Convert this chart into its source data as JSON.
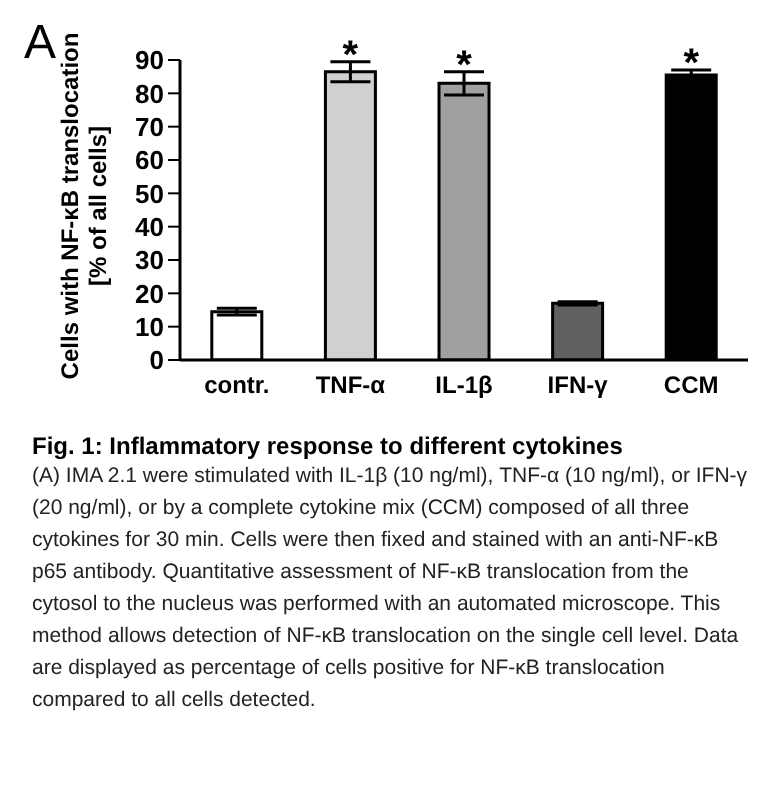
{
  "chart_data": {
    "type": "bar",
    "title": "Fig. 1: Inflammatory response to different cytokines",
    "ylabel": "Cells with NF-κB translocation\n[% of all cells]",
    "categories": [
      "contr.",
      "TNF-α",
      "IL-1β",
      "IFN-γ",
      "CCM"
    ],
    "values": [
      14.5,
      86.5,
      83,
      17,
      85.5
    ],
    "errors": [
      1,
      3,
      3.5,
      0.5,
      1.5
    ],
    "colors": [
      "#ffffff",
      "#d0d0d0",
      "#a0a0a0",
      "#606060",
      "#000000"
    ],
    "ylim": [
      0,
      90
    ],
    "yticks": [
      0,
      10,
      20,
      30,
      40,
      50,
      60,
      70,
      80,
      90
    ],
    "grid": false,
    "legend": false,
    "annotations": [
      {
        "text": "A"
      },
      {
        "text": "*",
        "x": "TNF-α",
        "y": 89.5
      },
      {
        "text": "*",
        "x": "IL-1β",
        "y": 86.5
      },
      {
        "text": "*",
        "x": "CCM",
        "y": 87
      },
      {
        "text": "(A) IMA 2.1 were stimulated with IL-1β (10 ng/ml), TNF-α (10 ng/ml), or IFN-γ (20 ng/ml), or by a complete cytokine mix (CCM) composed of all three cytokines for 30 min. Cells were then fixed and stained with an anti-NF-κB p65 antibody. Quantitative assessment of NF-κB translocation from the cytosol to the nucleus was performed with an automated microscope. This method allows detection of NF-κB translocation on the single cell level. Data are displayed as percentage of cells positive for NF-κB translocation compared to all cells detected."
      }
    ]
  }
}
